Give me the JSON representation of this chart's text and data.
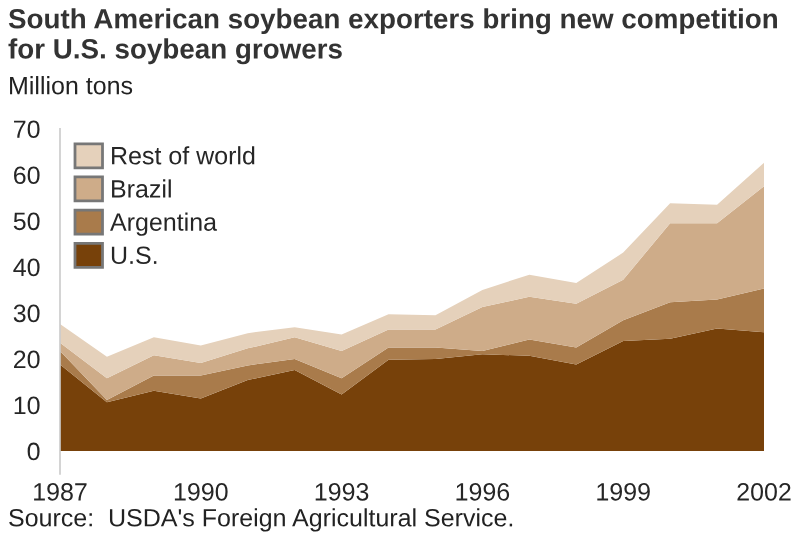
{
  "chart_data": {
    "type": "area",
    "stacked": true,
    "title": "South American soybean exporters bring new competition for U.S. soybean growers",
    "ylabel": "Million tons",
    "annotations": [
      "Source:  USDA's Foreign Agricultural Service."
    ],
    "x": [
      1987,
      1988,
      1989,
      1990,
      1991,
      1992,
      1993,
      1994,
      1995,
      1996,
      1997,
      1998,
      1999,
      2000,
      2001,
      2002
    ],
    "series": [
      {
        "name": "U.S.",
        "color": "#77410a",
        "values": [
          18.8,
          10.6,
          13.1,
          11.4,
          15.4,
          17.6,
          12.3,
          19.8,
          20.0,
          21.0,
          20.7,
          18.8,
          23.9,
          24.4,
          26.6,
          25.8
        ]
      },
      {
        "name": "Argentina",
        "color": "#a97b4b",
        "values": [
          2.9,
          0.5,
          3.3,
          5.0,
          3.2,
          2.4,
          3.5,
          2.7,
          2.5,
          0.7,
          3.5,
          3.7,
          4.5,
          7.9,
          6.3,
          9.5
        ]
      },
      {
        "name": "Brazil",
        "color": "#ceac89",
        "values": [
          1.8,
          4.7,
          4.4,
          2.7,
          3.7,
          4.7,
          5.9,
          3.9,
          3.9,
          9.6,
          9.3,
          9.5,
          8.8,
          17.2,
          16.6,
          22.2
        ]
      },
      {
        "name": "Rest of world",
        "color": "#e5d1bb",
        "values": [
          4.1,
          4.7,
          3.9,
          3.8,
          3.3,
          2.2,
          3.6,
          3.3,
          3.1,
          3.7,
          4.8,
          4.5,
          5.9,
          4.3,
          4.0,
          5.1
        ]
      }
    ],
    "xlim": [
      1987,
      2002
    ],
    "xticks": [
      1987,
      1990,
      1993,
      1996,
      1999,
      2002
    ],
    "ylim": [
      -5,
      70
    ],
    "yticks": [
      0,
      10,
      20,
      30,
      40,
      50,
      60,
      70
    ],
    "grid": false,
    "legend": "top left"
  }
}
